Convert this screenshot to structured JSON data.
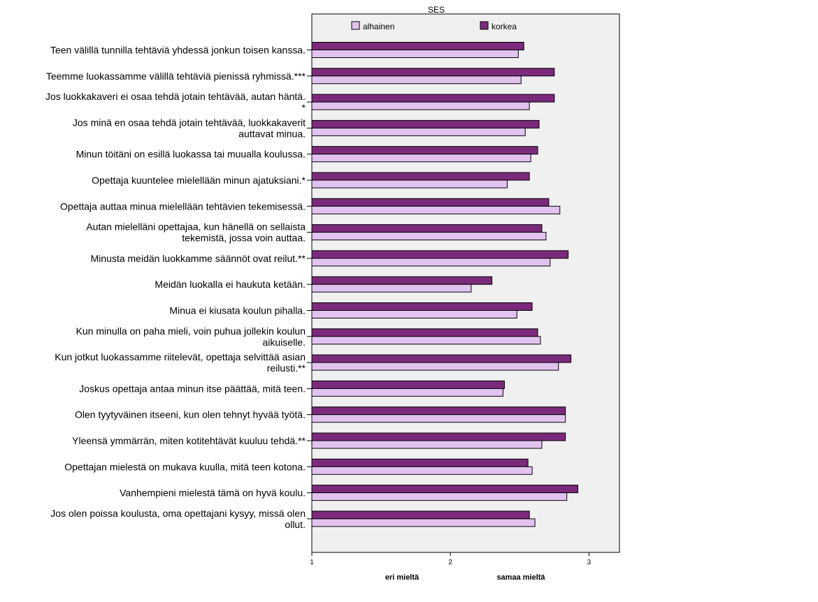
{
  "chart_data": {
    "type": "bar",
    "orientation": "horizontal",
    "legend_title": "SES",
    "legend_placement": "top",
    "grid": false,
    "xlim": [
      1,
      3.22
    ],
    "xticks": [
      1,
      2,
      3
    ],
    "x_annotations": [
      "eri mieltä",
      "samaa mieltä"
    ],
    "categories": [
      [
        "Teen välillä tunnilla tehtäviä yhdessä jonkun toisen kanssa."
      ],
      [
        "Teemme luokassamme välillä tehtäviä pienissä ryhmissä.***"
      ],
      [
        "Jos luokkakaveri ei osaa tehdä jotain tehtävää, autan häntä.",
        "*"
      ],
      [
        "Jos minä en osaa tehdä jotain tehtävää, luokkakaverit",
        "auttavat minua."
      ],
      [
        "Minun töitäni on esillä luokassa tai muualla koulussa."
      ],
      [
        "Opettaja kuuntelee mielellään minun ajatuksiani.*"
      ],
      [
        "Opettaja auttaa minua mielellään tehtävien tekemisessä."
      ],
      [
        "Autan mielelläni opettajaa, kun hänellä on sellaista",
        "tekemistä, jossa voin auttaa."
      ],
      [
        "Minusta meidän luokkamme säännöt ovat reilut.**"
      ],
      [
        "Meidän luokalla ei haukuta ketään."
      ],
      [
        "Minua ei kiusata koulun pihalla."
      ],
      [
        "Kun minulla on paha mieli, voin puhua jollekin koulun",
        "aikuiselle."
      ],
      [
        "Kun jotkut luokassamme riitelevät, opettaja selvittää asian",
        "reilusti.**"
      ],
      [
        "Joskus opettaja antaa minun itse päättää, mitä teen."
      ],
      [
        "Olen tyytyväinen itseeni, kun olen tehnyt hyvää työtä."
      ],
      [
        "Yleensä ymmärrän, miten kotitehtävät kuuluu tehdä.**"
      ],
      [
        "Opettajan mielestä on mukava kuulla, mitä teen kotona."
      ],
      [
        "Vanhempieni mielestä tämä on hyvä koulu."
      ],
      [
        "Jos olen poissa koulusta, oma opettajani kysyy, missä olen",
        "ollut."
      ]
    ],
    "series": [
      {
        "name": "korkea",
        "color": "#7b2a7b",
        "values": [
          2.53,
          2.75,
          2.75,
          2.64,
          2.63,
          2.57,
          2.71,
          2.66,
          2.85,
          2.3,
          2.59,
          2.63,
          2.87,
          2.39,
          2.83,
          2.83,
          2.56,
          2.92,
          2.57
        ]
      },
      {
        "name": "alhainen",
        "color": "#e2c3f0",
        "values": [
          2.49,
          2.51,
          2.57,
          2.54,
          2.58,
          2.41,
          2.79,
          2.69,
          2.72,
          2.15,
          2.48,
          2.65,
          2.78,
          2.38,
          2.83,
          2.66,
          2.59,
          2.84,
          2.61
        ]
      }
    ]
  }
}
